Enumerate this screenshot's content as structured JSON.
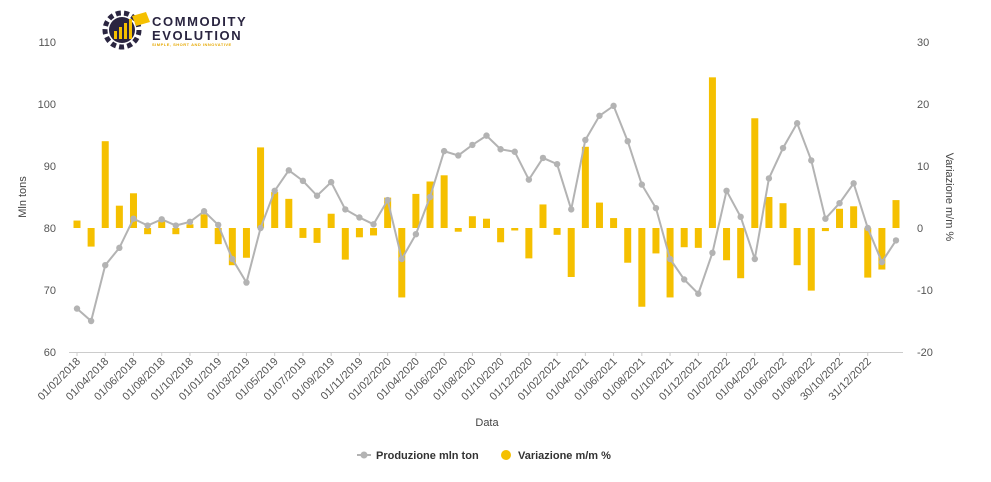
{
  "logo": {
    "line1": "COMMODITY",
    "line2": "EVOLUTION",
    "tagline": "SIMPLE, SHORT AND INNOVATIVE"
  },
  "colors": {
    "line": "#b3b3b3",
    "bar": "#f5c000",
    "logo_dark": "#2a2540",
    "logo_accent": "#f5c000"
  },
  "chart_data": {
    "type": "bar+line",
    "xlabel": "Data",
    "ylabel_left": "Mln tons",
    "ylabel_right": "Variazione m/m %",
    "ylim_left": [
      60,
      110
    ],
    "ylim_right": [
      -20,
      30
    ],
    "yticks_left": [
      60,
      70,
      80,
      90,
      100,
      110
    ],
    "yticks_right": [
      -20,
      -10,
      0,
      10,
      20,
      30
    ],
    "xtick_labels": [
      "01/02/2018",
      "01/04/2018",
      "01/06/2018",
      "01/08/2018",
      "01/10/2018",
      "01/01/2019",
      "01/03/2019",
      "01/05/2019",
      "01/07/2019",
      "01/09/2019",
      "01/11/2019",
      "01/02/2020",
      "01/04/2020",
      "01/06/2020",
      "01/08/2020",
      "01/10/2020",
      "01/12/2020",
      "01/02/2021",
      "01/04/2021",
      "01/06/2021",
      "01/08/2021",
      "01/10/2021",
      "01/12/2021",
      "01/02/2022",
      "01/04/2022",
      "01/06/2022",
      "01/08/2022",
      "30/10/2022",
      "31/12/2022"
    ],
    "series": [
      {
        "name": "Produzione mln ton",
        "type": "line",
        "values": [
          67.0,
          65.0,
          74.0,
          76.8,
          81.5,
          80.4,
          81.4,
          80.4,
          81.0,
          82.7,
          80.5,
          75.0,
          71.2,
          80.0,
          86.0,
          89.3,
          87.6,
          85.2,
          87.4,
          83.0,
          81.7,
          80.6,
          84.5,
          75.0,
          79.0,
          85.0,
          92.4,
          91.7,
          93.4,
          94.9,
          92.7,
          92.3,
          87.8,
          91.3,
          90.3,
          83.0,
          94.2,
          98.1,
          99.7,
          94.0,
          87.0,
          83.2,
          75.0,
          71.7,
          69.4,
          76.0,
          86.0,
          81.8,
          75.0,
          88.0,
          92.9,
          96.9,
          90.9,
          81.5,
          84.0,
          87.2,
          80.0,
          74.5,
          78.0
        ]
      },
      {
        "name": "Variazione m/m %",
        "type": "bar",
        "values": [
          1.2,
          -3.0,
          14.0,
          3.6,
          5.6,
          -1.0,
          1.2,
          -1.0,
          0.6,
          2.2,
          -2.6,
          -6.0,
          -4.8,
          13.0,
          5.8,
          4.7,
          -1.6,
          -2.4,
          2.3,
          -5.1,
          -1.5,
          -1.2,
          4.9,
          -11.2,
          5.5,
          7.5,
          8.5,
          -0.6,
          1.9,
          1.5,
          -2.3,
          -0.4,
          -4.9,
          3.8,
          -1.1,
          -7.9,
          13.1,
          4.1,
          1.6,
          -5.6,
          -12.7,
          -4.1,
          -11.2,
          -3.1,
          -3.2,
          24.3,
          -5.2,
          -8.1,
          17.7,
          5.0,
          4.0,
          -6.0,
          -10.1,
          -0.5,
          3.1,
          3.5,
          -8.0,
          -6.7,
          4.5
        ]
      }
    ],
    "legend": "bottom-center",
    "grid": false
  }
}
